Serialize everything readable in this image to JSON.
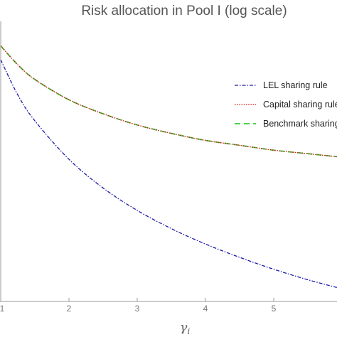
{
  "chart_data": {
    "type": "line",
    "title": "Risk allocation in Pool I (log scale)",
    "xlabel": "γ",
    "xlabel_subscript": "i",
    "ylabel": "",
    "x_tick_labels": [
      "1",
      "2",
      "3",
      "4",
      "5"
    ],
    "xlim": [
      1,
      6
    ],
    "y_scale": "log",
    "grid": false,
    "legend_position": "right",
    "series": [
      {
        "name": "LEL sharing rule",
        "color": "#1a1aa6",
        "style": "dash-dot",
        "x": [
          1,
          1.25,
          1.5,
          2,
          2.5,
          3,
          3.5,
          4,
          4.5,
          5,
          5.5,
          6
        ],
        "y": [
          -0.55,
          -1.05,
          -1.42,
          -1.97,
          -2.38,
          -2.7,
          -2.96,
          -3.18,
          -3.37,
          -3.54,
          -3.69,
          -3.82
        ]
      },
      {
        "name": "Capital sharing rule",
        "color": "#cc1a1a",
        "style": "dotted",
        "x": [
          1,
          1.25,
          1.5,
          2,
          2.5,
          3,
          3.5,
          4,
          4.5,
          5,
          5.5,
          6
        ],
        "y": [
          -0.35,
          -0.62,
          -0.83,
          -1.12,
          -1.32,
          -1.48,
          -1.6,
          -1.7,
          -1.77,
          -1.84,
          -1.89,
          -1.94
        ]
      },
      {
        "name": "Benchmark sharing rule",
        "color": "#33cc33",
        "style": "dashed",
        "x": [
          1,
          1.25,
          1.5,
          2,
          2.5,
          3,
          3.5,
          4,
          4.5,
          5,
          5.5,
          6
        ],
        "y": [
          -0.35,
          -0.62,
          -0.83,
          -1.12,
          -1.32,
          -1.48,
          -1.6,
          -1.7,
          -1.77,
          -1.84,
          -1.89,
          -1.94
        ]
      }
    ]
  }
}
